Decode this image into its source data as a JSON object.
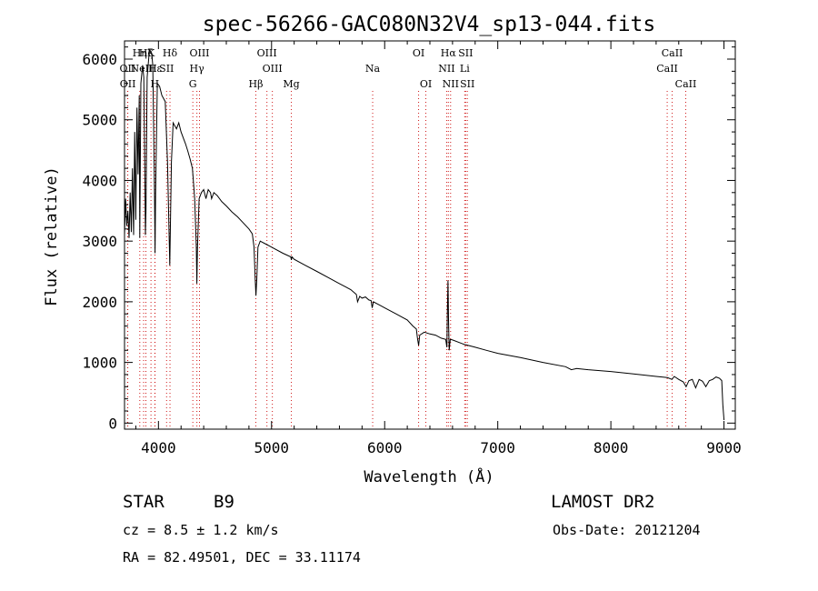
{
  "chart_data": {
    "type": "line",
    "title": "spec-56266-GAC080N32V4_sp13-044.fits",
    "xlabel": "Wavelength (Å)",
    "ylabel": "Flux (relative)",
    "xlim": [
      3700,
      9100
    ],
    "ylim": [
      -100,
      6300
    ],
    "x_ticks": [
      4000,
      5000,
      6000,
      7000,
      8000,
      9000
    ],
    "y_ticks": [
      0,
      1000,
      2000,
      3000,
      4000,
      5000,
      6000
    ],
    "grid": false,
    "series": [
      {
        "color": "#000000",
        "points": [
          [
            3700,
            3100
          ],
          [
            3710,
            3700
          ],
          [
            3720,
            3250
          ],
          [
            3730,
            3500
          ],
          [
            3740,
            3050
          ],
          [
            3750,
            3800
          ],
          [
            3760,
            3150
          ],
          [
            3770,
            4200
          ],
          [
            3780,
            3100
          ],
          [
            3790,
            4800
          ],
          [
            3800,
            3350
          ],
          [
            3810,
            5200
          ],
          [
            3820,
            4100
          ],
          [
            3830,
            5400
          ],
          [
            3835,
            3050
          ],
          [
            3845,
            5600
          ],
          [
            3860,
            5900
          ],
          [
            3870,
            5700
          ],
          [
            3880,
            4100
          ],
          [
            3885,
            3100
          ],
          [
            3890,
            3500
          ],
          [
            3900,
            5700
          ],
          [
            3920,
            6150
          ],
          [
            3940,
            6100
          ],
          [
            3950,
            5900
          ],
          [
            3965,
            3800
          ],
          [
            3970,
            2800
          ],
          [
            3975,
            3800
          ],
          [
            3990,
            5600
          ],
          [
            4010,
            5550
          ],
          [
            4030,
            5400
          ],
          [
            4060,
            5300
          ],
          [
            4080,
            4300
          ],
          [
            4100,
            2600
          ],
          [
            4115,
            4300
          ],
          [
            4130,
            4950
          ],
          [
            4160,
            4850
          ],
          [
            4180,
            4950
          ],
          [
            4200,
            4800
          ],
          [
            4220,
            4700
          ],
          [
            4240,
            4600
          ],
          [
            4260,
            4480
          ],
          [
            4280,
            4350
          ],
          [
            4300,
            4200
          ],
          [
            4320,
            3700
          ],
          [
            4335,
            2900
          ],
          [
            4340,
            2300
          ],
          [
            4345,
            2900
          ],
          [
            4360,
            3700
          ],
          [
            4380,
            3800
          ],
          [
            4400,
            3850
          ],
          [
            4420,
            3700
          ],
          [
            4440,
            3850
          ],
          [
            4460,
            3800
          ],
          [
            4470,
            3700
          ],
          [
            4490,
            3800
          ],
          [
            4520,
            3750
          ],
          [
            4560,
            3650
          ],
          [
            4600,
            3580
          ],
          [
            4650,
            3480
          ],
          [
            4700,
            3400
          ],
          [
            4750,
            3300
          ],
          [
            4800,
            3200
          ],
          [
            4830,
            3120
          ],
          [
            4845,
            2900
          ],
          [
            4855,
            2400
          ],
          [
            4862,
            2100
          ],
          [
            4870,
            2400
          ],
          [
            4880,
            2900
          ],
          [
            4900,
            3000
          ],
          [
            4950,
            2950
          ],
          [
            5000,
            2900
          ],
          [
            5100,
            2800
          ],
          [
            5170,
            2740
          ],
          [
            5175,
            2690
          ],
          [
            5180,
            2740
          ],
          [
            5200,
            2700
          ],
          [
            5300,
            2600
          ],
          [
            5400,
            2500
          ],
          [
            5500,
            2400
          ],
          [
            5600,
            2300
          ],
          [
            5700,
            2200
          ],
          [
            5750,
            2120
          ],
          [
            5760,
            2000
          ],
          [
            5780,
            2090
          ],
          [
            5800,
            2060
          ],
          [
            5830,
            2080
          ],
          [
            5860,
            2030
          ],
          [
            5880,
            2020
          ],
          [
            5890,
            1900
          ],
          [
            5900,
            2000
          ],
          [
            5950,
            1950
          ],
          [
            6000,
            1900
          ],
          [
            6100,
            1800
          ],
          [
            6200,
            1700
          ],
          [
            6250,
            1600
          ],
          [
            6280,
            1550
          ],
          [
            6290,
            1400
          ],
          [
            6300,
            1280
          ],
          [
            6310,
            1450
          ],
          [
            6350,
            1500
          ],
          [
            6400,
            1470
          ],
          [
            6450,
            1450
          ],
          [
            6500,
            1400
          ],
          [
            6540,
            1380
          ],
          [
            6550,
            1250
          ],
          [
            6555,
            1900
          ],
          [
            6560,
            2350
          ],
          [
            6565,
            1700
          ],
          [
            6570,
            1200
          ],
          [
            6580,
            1380
          ],
          [
            6600,
            1370
          ],
          [
            6700,
            1300
          ],
          [
            6800,
            1250
          ],
          [
            6900,
            1200
          ],
          [
            7000,
            1150
          ],
          [
            7200,
            1080
          ],
          [
            7400,
            1000
          ],
          [
            7600,
            930
          ],
          [
            7650,
            880
          ],
          [
            7700,
            900
          ],
          [
            7800,
            880
          ],
          [
            8000,
            850
          ],
          [
            8200,
            810
          ],
          [
            8400,
            770
          ],
          [
            8500,
            750
          ],
          [
            8540,
            720
          ],
          [
            8560,
            770
          ],
          [
            8600,
            720
          ],
          [
            8640,
            680
          ],
          [
            8665,
            600
          ],
          [
            8690,
            700
          ],
          [
            8720,
            720
          ],
          [
            8750,
            580
          ],
          [
            8780,
            720
          ],
          [
            8810,
            690
          ],
          [
            8840,
            600
          ],
          [
            8870,
            700
          ],
          [
            8900,
            720
          ],
          [
            8930,
            760
          ],
          [
            8960,
            740
          ],
          [
            8980,
            700
          ],
          [
            8990,
            300
          ],
          [
            9000,
            50
          ]
        ]
      }
    ],
    "line_markers": [
      {
        "label": "Hα",
        "wl": 6563,
        "row": 0
      },
      {
        "label": "Hβ",
        "wl": 4861,
        "row": 2
      },
      {
        "label": "Hγ",
        "wl": 4340,
        "row": 1
      },
      {
        "label": "Hδ",
        "wl": 4102,
        "row": 0
      },
      {
        "label": "Hε",
        "wl": 3970,
        "row": 1
      },
      {
        "label": "H",
        "wl": 3968,
        "row": 2
      },
      {
        "label": "K",
        "wl": 3934,
        "row": 0
      },
      {
        "label": "G",
        "wl": 4304,
        "row": 2
      },
      {
        "label": "Mg",
        "wl": 5175,
        "row": 2
      },
      {
        "label": "Na",
        "wl": 5894,
        "row": 1
      },
      {
        "label": "OII",
        "wl": 3727,
        "row": 1
      },
      {
        "label": "OII",
        "wl": 3729,
        "row": 2
      },
      {
        "label": "OIII",
        "wl": 4363,
        "row": 0
      },
      {
        "label": "OIII",
        "wl": 4959,
        "row": 0
      },
      {
        "label": "OIII",
        "wl": 5007,
        "row": 1
      },
      {
        "label": "OI",
        "wl": 6300,
        "row": 0
      },
      {
        "label": "OI",
        "wl": 6364,
        "row": 2
      },
      {
        "label": "NII",
        "wl": 6548,
        "row": 1
      },
      {
        "label": "NII",
        "wl": 6583,
        "row": 2
      },
      {
        "label": "SII",
        "wl": 6716,
        "row": 0
      },
      {
        "label": "SII",
        "wl": 6731,
        "row": 2
      },
      {
        "label": "SII",
        "wl": 4072,
        "row": 1
      },
      {
        "label": "Li",
        "wl": 6708,
        "row": 1
      },
      {
        "label": "CaII",
        "wl": 8498,
        "row": 1
      },
      {
        "label": "CaII",
        "wl": 8542,
        "row": 0
      },
      {
        "label": "CaII",
        "wl": 8662,
        "row": 2
      },
      {
        "label": "Hη",
        "wl": 3835,
        "row": 0
      },
      {
        "label": "Hζ",
        "wl": 3889,
        "row": 0
      },
      {
        "label": "NeIII",
        "wl": 3869,
        "row": 1
      }
    ]
  },
  "info": {
    "object_class": "STAR",
    "subclass": "B9",
    "survey": "LAMOST DR2",
    "redshift": "cz = 8.5 ± 1.2 km/s",
    "obs_date": "Obs-Date: 20121204",
    "coords": "RA =  82.49501, DEC =  33.11174"
  }
}
